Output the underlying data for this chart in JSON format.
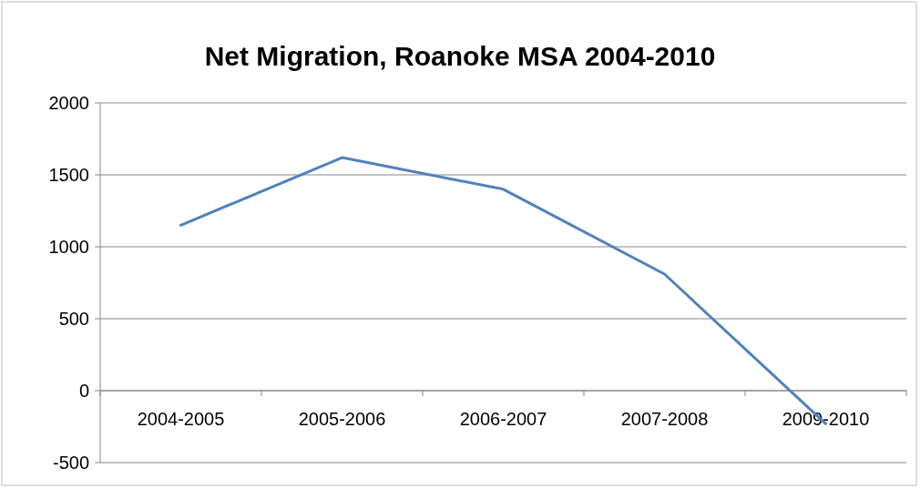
{
  "chart_data": {
    "type": "line",
    "title": "Net Migration, Roanoke MSA 2004-2010",
    "categories": [
      "2004-2005",
      "2005-2006",
      "2006-2007",
      "2007-2008",
      "2009-2010"
    ],
    "series": [
      {
        "color": "#4f81bd",
        "values": [
          1150,
          1620,
          1400,
          810,
          -230
        ]
      }
    ],
    "ylim": [
      -500,
      2000
    ],
    "yticks": [
      -500,
      0,
      500,
      1000,
      1500,
      2000
    ],
    "grid": "y",
    "marker": "none"
  }
}
